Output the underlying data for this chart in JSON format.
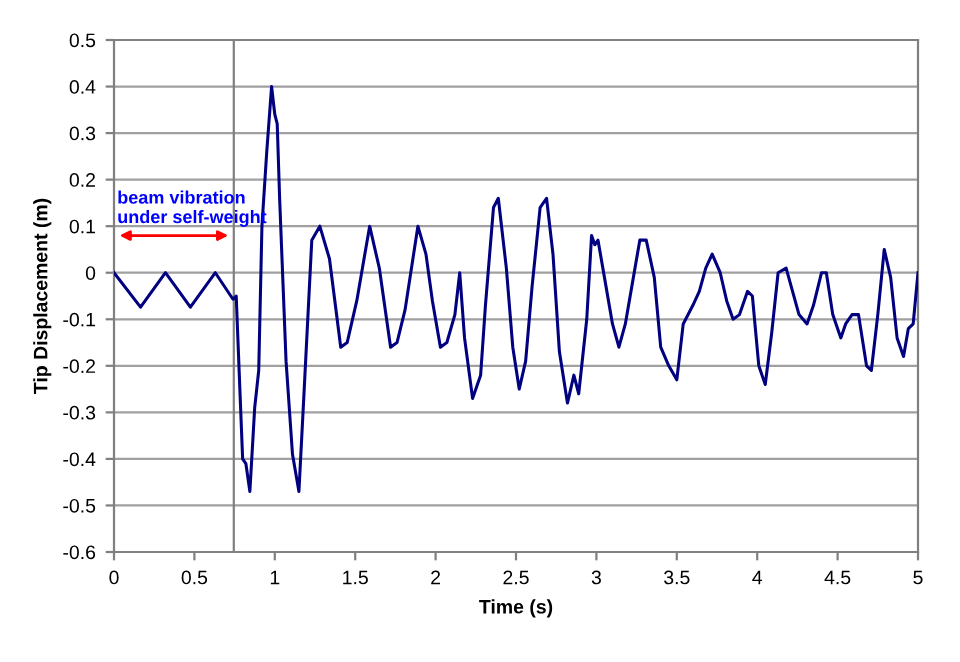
{
  "chart_data": {
    "type": "line",
    "xlabel": "Time (s)",
    "ylabel": "Tip Displacement (m)",
    "xlim": [
      0,
      5
    ],
    "xticks": [
      0,
      0.5,
      1,
      1.5,
      2,
      2.5,
      3,
      3.5,
      4,
      4.5,
      5
    ],
    "ylim": [
      -0.6,
      0.5
    ],
    "yticks": [
      -0.6,
      -0.5,
      -0.4,
      -0.3,
      -0.2,
      -0.1,
      0,
      0.1,
      0.2,
      0.3,
      0.4,
      0.5
    ],
    "grid": "y",
    "legend": false,
    "marker": "none",
    "line_style": "solid",
    "ref_lines": [
      {
        "axis": "x",
        "value": 0.745,
        "color": "#808080"
      }
    ],
    "annotations": [
      "beam vibration\nunder self-weight"
    ],
    "series": [
      {
        "color": "#000080",
        "x": [
          0,
          0.165,
          0.32,
          0.475,
          0.63,
          0.74,
          0.76,
          0.785,
          0.8,
          0.82,
          0.845,
          0.875,
          0.9,
          0.92,
          0.95,
          0.98,
          1.0,
          1.015,
          1.03,
          1.07,
          1.11,
          1.15,
          1.18,
          1.23,
          1.28,
          1.34,
          1.41,
          1.45,
          1.51,
          1.59,
          1.65,
          1.72,
          1.76,
          1.81,
          1.89,
          1.94,
          1.98,
          2.03,
          2.07,
          2.12,
          2.15,
          2.18,
          2.23,
          2.26,
          2.28,
          2.31,
          2.36,
          2.39,
          2.44,
          2.48,
          2.52,
          2.56,
          2.6,
          2.65,
          2.69,
          2.73,
          2.77,
          2.82,
          2.86,
          2.89,
          2.94,
          2.97,
          2.99,
          3.01,
          3.05,
          3.1,
          3.14,
          3.18,
          3.23,
          3.27,
          3.31,
          3.36,
          3.4,
          3.45,
          3.5,
          3.54,
          3.6,
          3.64,
          3.68,
          3.72,
          3.77,
          3.81,
          3.85,
          3.89,
          3.94,
          3.97,
          4.01,
          4.05,
          4.09,
          4.13,
          4.18,
          4.22,
          4.26,
          4.31,
          4.35,
          4.4,
          4.43,
          4.47,
          4.52,
          4.55,
          4.59,
          4.63,
          4.68,
          4.71,
          4.75,
          4.79,
          4.83,
          4.87,
          4.91,
          4.94,
          4.97,
          5.0
        ],
        "values": [
          0,
          -0.074,
          0,
          -0.074,
          0,
          -0.057,
          -0.05,
          -0.27,
          -0.4,
          -0.41,
          -0.47,
          -0.29,
          -0.21,
          0.1,
          0.26,
          0.4,
          0.34,
          0.32,
          0.16,
          -0.19,
          -0.39,
          -0.47,
          -0.27,
          0.07,
          0.1,
          0.03,
          -0.16,
          -0.15,
          -0.06,
          0.1,
          0.01,
          -0.16,
          -0.15,
          -0.08,
          0.1,
          0.04,
          -0.06,
          -0.16,
          -0.15,
          -0.09,
          0,
          -0.14,
          -0.27,
          -0.24,
          -0.22,
          -0.07,
          0.14,
          0.16,
          0.01,
          -0.16,
          -0.25,
          -0.19,
          -0.03,
          0.14,
          0.16,
          0.04,
          -0.17,
          -0.28,
          -0.22,
          -0.26,
          -0.1,
          0.08,
          0.06,
          0.07,
          -0.01,
          -0.11,
          -0.16,
          -0.11,
          -0.01,
          0.07,
          0.07,
          -0.01,
          -0.16,
          -0.2,
          -0.23,
          -0.11,
          -0.07,
          -0.04,
          0.01,
          0.04,
          0,
          -0.06,
          -0.1,
          -0.09,
          -0.04,
          -0.05,
          -0.2,
          -0.24,
          -0.13,
          0,
          0.01,
          -0.04,
          -0.09,
          -0.11,
          -0.07,
          0,
          0,
          -0.09,
          -0.14,
          -0.11,
          -0.09,
          -0.09,
          -0.2,
          -0.21,
          -0.09,
          0.05,
          -0.01,
          -0.14,
          -0.18,
          -0.12,
          -0.11,
          0
        ]
      }
    ]
  }
}
